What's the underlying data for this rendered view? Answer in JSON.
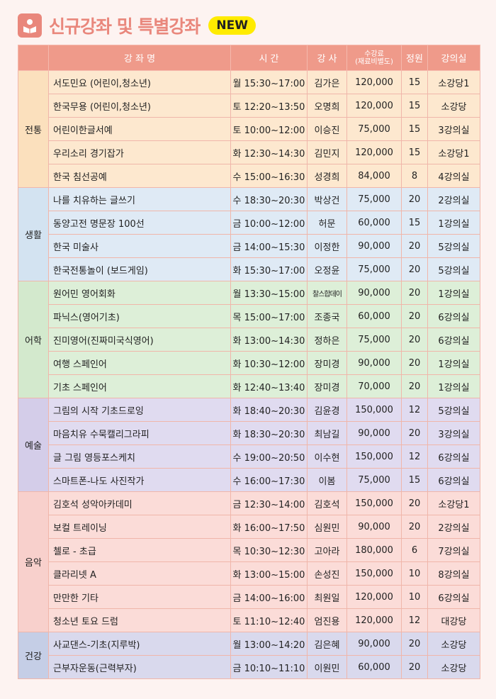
{
  "title": "신규강좌 및 특별강좌",
  "badge": "NEW",
  "icon": "reading-person-icon",
  "colors": {
    "title": "#e9877c",
    "header": "#ef9a8a",
    "badge": "#ffeb00"
  },
  "headers": {
    "category": "",
    "name": "강 좌 명",
    "time": "시 간",
    "instructor": "강 사",
    "fee": "수강료",
    "fee_note": "(재료비별도)",
    "capacity": "정원",
    "room": "강의실"
  },
  "groups": [
    {
      "category": "전통",
      "cat_color": "#fbe0bd",
      "row_color": "#fde8cf",
      "rows": [
        [
          "서도민요 (어린이,청소년)",
          "월 15:30~17:00",
          "김가은",
          "120,000",
          "15",
          "소강당1"
        ],
        [
          "한국무용 (어린이,청소년)",
          "토 12:20~13:50",
          "오명희",
          "120,000",
          "15",
          "소강당"
        ],
        [
          "어린이한글서예",
          "토 10:00~12:00",
          "이승진",
          "75,000",
          "15",
          "3강의실"
        ],
        [
          "우리소리 경기잡가",
          "화 12:30~14:30",
          "김민지",
          "120,000",
          "15",
          "소강당1"
        ],
        [
          "한국 침선공예",
          "수 15:00~16:30",
          "성경희",
          "84,000",
          "8",
          "4강의실"
        ]
      ]
    },
    {
      "category": "생활",
      "cat_color": "#d3e3f1",
      "row_color": "#dfeaf5",
      "rows": [
        [
          "나를 치유하는 글쓰기",
          "수 18:30~20:30",
          "박상건",
          "75,000",
          "20",
          "2강의실"
        ],
        [
          "동양고전 명문장 100선",
          "금 10:00~12:00",
          "허문",
          "60,000",
          "15",
          "1강의실"
        ],
        [
          "한국 미술사",
          "금 14:00~15:30",
          "이정한",
          "90,000",
          "20",
          "5강의실"
        ],
        [
          "한국전통놀이 (보드게임)",
          "화 15:30~17:00",
          "오정윤",
          "75,000",
          "20",
          "5강의실"
        ]
      ]
    },
    {
      "category": "어학",
      "cat_color": "#d3e9cd",
      "row_color": "#ddefd8",
      "rows": [
        [
          "원어민 영어회화",
          "월 13:30~15:00",
          "찰스합데이",
          "90,000",
          "20",
          "1강의실"
        ],
        [
          "파닉스(영어기초)",
          "목 15:00~17:00",
          "조종국",
          "60,000",
          "20",
          "6강의실"
        ],
        [
          "진미영어(진짜미국식영어)",
          "화 13:00~14:30",
          "정하은",
          "75,000",
          "20",
          "6강의실"
        ],
        [
          "여행 스페인어",
          "화 10:30~12:00",
          "장미경",
          "90,000",
          "20",
          "1강의실"
        ],
        [
          "기초 스페인어",
          "화 12:40~13:40",
          "장미경",
          "70,000",
          "20",
          "1강의실"
        ]
      ]
    },
    {
      "category": "예술",
      "cat_color": "#d4cde9",
      "row_color": "#e0dbf0",
      "rows": [
        [
          "그림의 시작 기초드로잉",
          "화 18:40~20:30",
          "김윤경",
          "150,000",
          "12",
          "5강의실"
        ],
        [
          "마음치유 수묵캘리그라피",
          "화 18:30~20:30",
          "최남길",
          "90,000",
          "20",
          "3강의실"
        ],
        [
          "글 그림 영등포스케치",
          "수 19:00~20:50",
          "이수현",
          "150,000",
          "12",
          "6강의실"
        ],
        [
          "스마트폰-나도 사진작가",
          "수 16:00~17:30",
          "이봄",
          "75,000",
          "15",
          "6강의실"
        ]
      ]
    },
    {
      "category": "음악",
      "cat_color": "#f8d0cc",
      "row_color": "#fbdcd8",
      "rows": [
        [
          "김호석 성악아카데미",
          "금 12:30~14:00",
          "김호석",
          "150,000",
          "20",
          "소강당1"
        ],
        [
          "보컬 트레이닝",
          "화 16:00~17:50",
          "심원민",
          "90,000",
          "20",
          "2강의실"
        ],
        [
          "첼로 - 초급",
          "목 10:30~12:30",
          "고아라",
          "180,000",
          "6",
          "7강의실"
        ],
        [
          "클라리넷 A",
          "화 13:00~15:00",
          "손성진",
          "150,000",
          "10",
          "8강의실"
        ],
        [
          "만만한 기타",
          "금 14:00~16:00",
          "최원일",
          "120,000",
          "10",
          "6강의실"
        ],
        [
          "청소년 토요 드럼",
          "토 11:10~12:40",
          "엄진용",
          "120,000",
          "12",
          "대강당"
        ]
      ]
    },
    {
      "category": "건강",
      "cat_color": "#c5cee6",
      "row_color": "#d9d9ed",
      "rows": [
        [
          "사교댄스-기초(지루박)",
          "월 13:00~14:20",
          "김은혜",
          "90,000",
          "20",
          "소강당"
        ],
        [
          "근부자운동(근력부자)",
          "금 10:10~11:10",
          "이원민",
          "60,000",
          "20",
          "소강당"
        ]
      ]
    }
  ]
}
